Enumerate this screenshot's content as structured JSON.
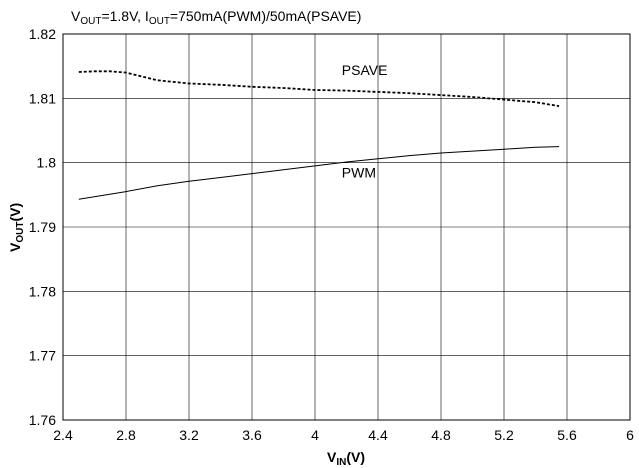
{
  "conditions": {
    "v_main": "V",
    "v_sub": "OUT",
    "v_rest": "=1.8V, I",
    "i_sub": "OUT",
    "i_rest": "=750mA(PWM)/50mA(PSAVE)"
  },
  "chart_data": {
    "type": "line",
    "xlabel_main": "V",
    "xlabel_sub": "IN",
    "xlabel_unit": "(V)",
    "ylabel_main": "V",
    "ylabel_sub": "OUT",
    "ylabel_unit": "(V)",
    "xlim": [
      2.4,
      6
    ],
    "ylim": [
      1.76,
      1.82
    ],
    "x_ticks": [
      2.4,
      2.8,
      3.2,
      3.6,
      4,
      4.4,
      4.8,
      5.2,
      5.6,
      6
    ],
    "x_tick_labels": [
      "2.4",
      "2.8",
      "3.2",
      "3.6",
      "4",
      "4.4",
      "4.8",
      "5.2",
      "5.6",
      "6"
    ],
    "y_ticks": [
      1.76,
      1.77,
      1.78,
      1.79,
      1.8,
      1.81,
      1.82
    ],
    "y_tick_labels": [
      "1.76",
      "1.77",
      "1.78",
      "1.79",
      "1.8",
      "1.81",
      "1.82"
    ],
    "grid": true,
    "series": [
      {
        "name": "PSAVE",
        "style": "dashed",
        "x": [
          2.5,
          2.6,
          2.7,
          2.8,
          2.9,
          3.0,
          3.2,
          3.4,
          3.6,
          3.8,
          4.0,
          4.2,
          4.4,
          4.6,
          4.8,
          5.0,
          5.2,
          5.4,
          5.55
        ],
        "y": [
          1.8141,
          1.8142,
          1.8142,
          1.814,
          1.8134,
          1.8128,
          1.8123,
          1.8121,
          1.8118,
          1.8116,
          1.8113,
          1.8112,
          1.811,
          1.8108,
          1.8105,
          1.8102,
          1.8098,
          1.8094,
          1.8088
        ]
      },
      {
        "name": "PWM",
        "style": "solid",
        "x": [
          2.5,
          2.8,
          3.0,
          3.2,
          3.4,
          3.6,
          3.8,
          4.0,
          4.2,
          4.4,
          4.6,
          4.8,
          5.0,
          5.2,
          5.4,
          5.55
        ],
        "y": [
          1.7943,
          1.7955,
          1.7964,
          1.7971,
          1.7977,
          1.7983,
          1.7989,
          1.7995,
          1.8001,
          1.8006,
          1.8011,
          1.8015,
          1.8018,
          1.8021,
          1.8024,
          1.8025
        ]
      }
    ],
    "annotations": [
      {
        "text": "PSAVE",
        "x": 4.17,
        "y": 1.8136
      },
      {
        "text": "PWM",
        "x": 4.17,
        "y": 1.7977
      }
    ]
  }
}
